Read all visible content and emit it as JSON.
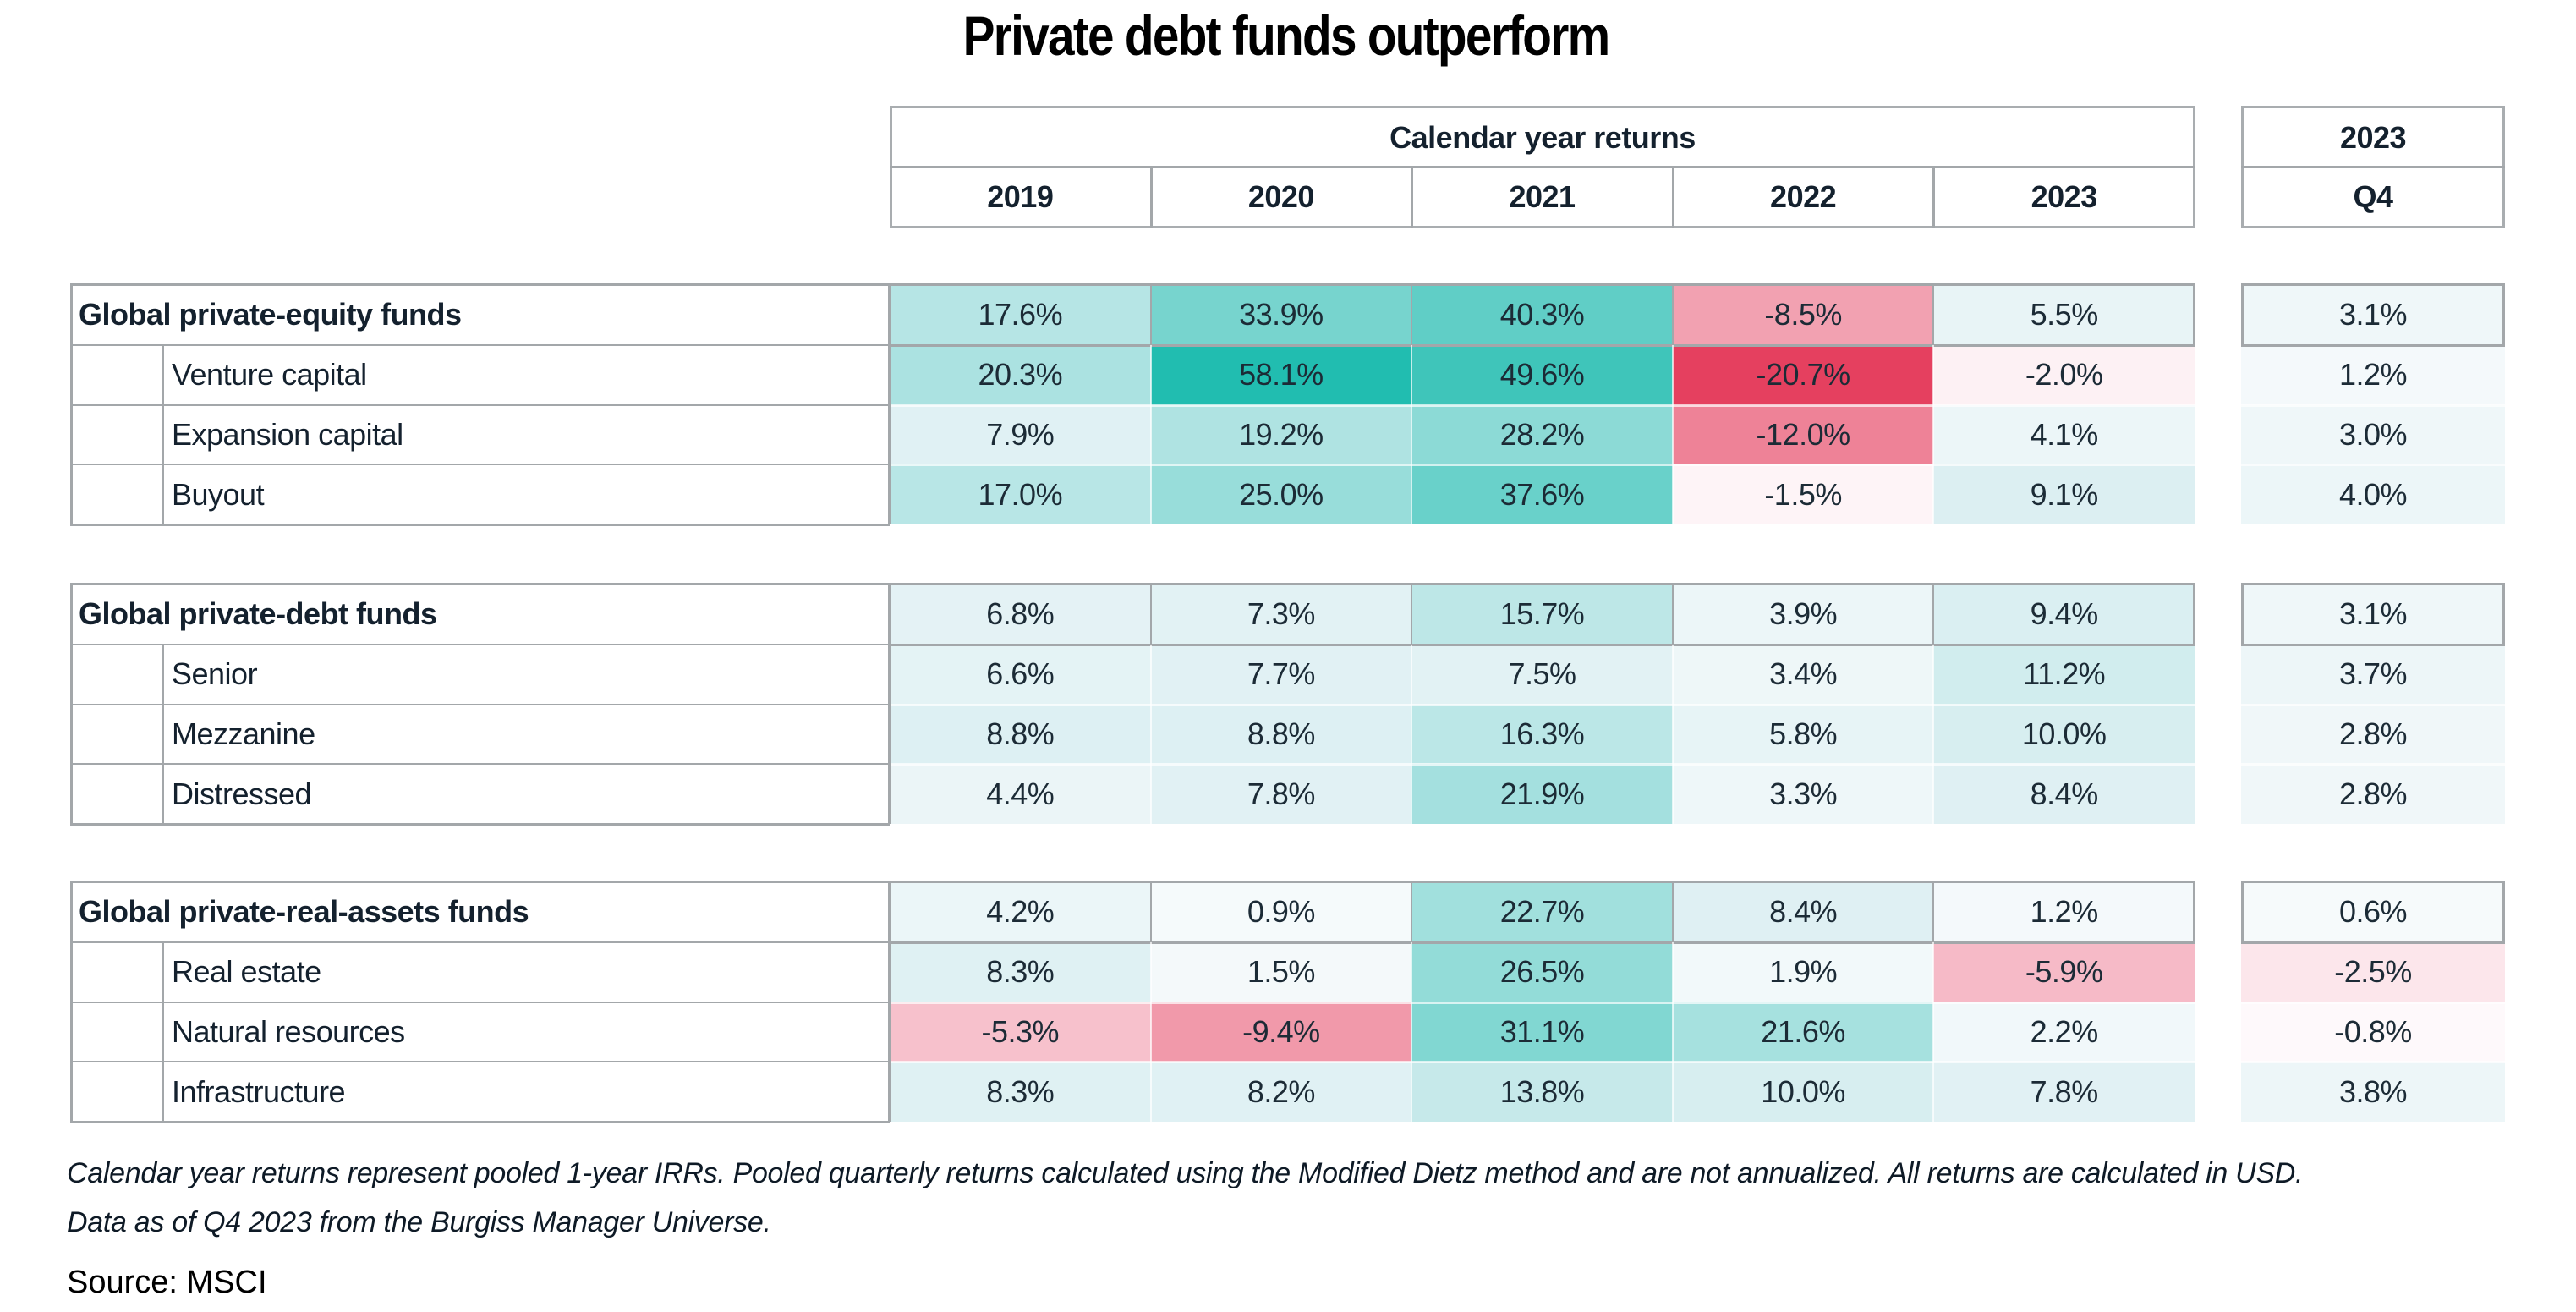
{
  "title": "Private debt funds outperform",
  "chart_data": {
    "type": "heatmap",
    "title": "Private debt funds outperform",
    "column_group_label": "Calendar year returns",
    "columns": [
      "2019",
      "2020",
      "2021",
      "2022",
      "2023"
    ],
    "extra_column": {
      "group_label": "2023",
      "label": "Q4"
    },
    "units": "%",
    "color_scale": {
      "positive": "#21bdb0",
      "negative": "#e5405f",
      "neutral": "#ffffff",
      "positive_max": 58.1,
      "negative_min": -20.7
    },
    "groups": [
      {
        "name": "Global private-equity funds",
        "values": [
          17.6,
          33.9,
          40.3,
          -8.5,
          5.5
        ],
        "q4": 3.1,
        "rows": [
          {
            "name": "Venture capital",
            "values": [
              20.3,
              58.1,
              49.6,
              -20.7,
              -2.0
            ],
            "q4": 1.2
          },
          {
            "name": "Expansion capital",
            "values": [
              7.9,
              19.2,
              28.2,
              -12.0,
              4.1
            ],
            "q4": 3.0
          },
          {
            "name": "Buyout",
            "values": [
              17.0,
              25.0,
              37.6,
              -1.5,
              9.1
            ],
            "q4": 4.0
          }
        ]
      },
      {
        "name": "Global private-debt funds",
        "values": [
          6.8,
          7.3,
          15.7,
          3.9,
          9.4
        ],
        "q4": 3.1,
        "rows": [
          {
            "name": "Senior",
            "values": [
              6.6,
              7.7,
              7.5,
              3.4,
              11.2
            ],
            "q4": 3.7
          },
          {
            "name": "Mezzanine",
            "values": [
              8.8,
              8.8,
              16.3,
              5.8,
              10.0
            ],
            "q4": 2.8
          },
          {
            "name": "Distressed",
            "values": [
              4.4,
              7.8,
              21.9,
              3.3,
              8.4
            ],
            "q4": 2.8
          }
        ]
      },
      {
        "name": "Global private-real-assets funds",
        "values": [
          4.2,
          0.9,
          22.7,
          8.4,
          1.2
        ],
        "q4": 0.6,
        "rows": [
          {
            "name": "Real estate",
            "values": [
              8.3,
              1.5,
              26.5,
              1.9,
              -5.9
            ],
            "q4": -2.5
          },
          {
            "name": "Natural resources",
            "values": [
              -5.3,
              -9.4,
              31.1,
              21.6,
              2.2
            ],
            "q4": -0.8
          },
          {
            "name": "Infrastructure",
            "values": [
              8.3,
              8.2,
              13.8,
              10.0,
              7.8
            ],
            "q4": 3.8
          }
        ]
      }
    ]
  },
  "footnote": {
    "line1": "Calendar year returns represent pooled 1-year IRRs. Pooled quarterly returns calculated using the Modified Dietz method and are not annualized. All returns are calculated in USD.",
    "line2": "Data as of Q4 2023 from the Burgiss Manager Universe."
  },
  "source": "Source: MSCI"
}
